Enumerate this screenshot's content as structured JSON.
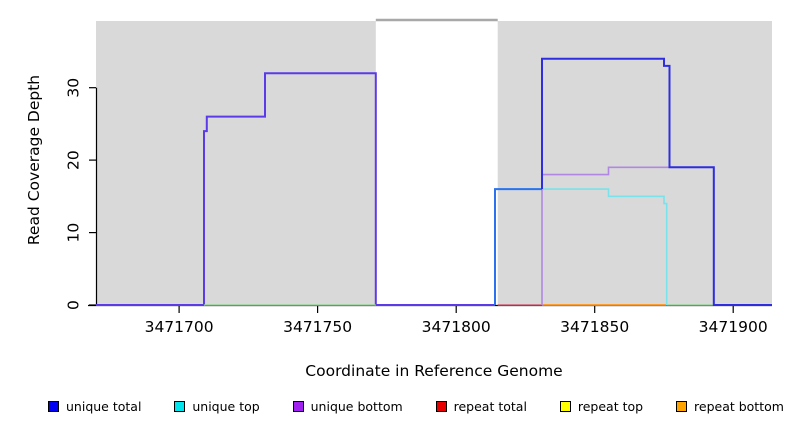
{
  "chart_data": {
    "type": "line",
    "subtype": "step-coverage",
    "title": "",
    "xlabel": "Coordinate in Reference Genome",
    "ylabel": "Read Coverage Depth",
    "xlim": [
      3471670,
      3471914
    ],
    "ylim": [
      0,
      39.2
    ],
    "x_ticks": [
      3471700,
      3471750,
      3471800,
      3471850,
      3471900
    ],
    "y_ticks": [
      0,
      10,
      20,
      30
    ],
    "grid": false,
    "legend_position": "bottom",
    "background_color": "#ffffff",
    "highlight_regions": [
      {
        "x0": 3471670,
        "x1": 3471771,
        "color": "#d9d9d9"
      },
      {
        "x0": 3471815,
        "x1": 3471914,
        "color": "#d9d9d9"
      }
    ],
    "gap_region": {
      "x0": 3471771,
      "x1": 3471815,
      "top_line_color": "#a8a8a8"
    },
    "series": [
      {
        "name": "unique total",
        "color": "#0000f5",
        "steps": [
          [
            3471670,
            0
          ],
          [
            3471709,
            24
          ],
          [
            3471710,
            26
          ],
          [
            3471731,
            32
          ],
          [
            3471771,
            0
          ],
          [
            3471814,
            16
          ],
          [
            3471831,
            34
          ],
          [
            3471875,
            33
          ],
          [
            3471876,
            19
          ],
          [
            3471893,
            0
          ],
          [
            3471914,
            0
          ]
        ]
      },
      {
        "name": "unique top",
        "color": "#00e5ee",
        "steps": [
          [
            3471670,
            0
          ],
          [
            3471814,
            16
          ],
          [
            3471855,
            15
          ],
          [
            3471875,
            14
          ],
          [
            3471876,
            0
          ],
          [
            3471914,
            0
          ]
        ]
      },
      {
        "name": "unique bottom",
        "color": "#a020f0",
        "steps": [
          [
            3471670,
            0
          ],
          [
            3471709,
            24
          ],
          [
            3471710,
            26
          ],
          [
            3471731,
            32
          ],
          [
            3471771,
            0
          ],
          [
            3471831,
            18
          ],
          [
            3471855,
            19
          ],
          [
            3471893,
            0
          ],
          [
            3471914,
            0
          ]
        ]
      },
      {
        "name": "repeat total",
        "color": "#e60000",
        "steps": [
          [
            3471670,
            0
          ],
          [
            3471914,
            0
          ]
        ]
      },
      {
        "name": "repeat top",
        "color": "#ffff00",
        "steps": [
          [
            3471670,
            0
          ],
          [
            3471914,
            0
          ]
        ]
      },
      {
        "name": "repeat bottom",
        "color": "#ffa300",
        "steps": [
          [
            3471670,
            0
          ],
          [
            3471914,
            0
          ]
        ]
      }
    ],
    "visible_segments": [
      {
        "desc": "unique-total-plus-bottom-left-blend",
        "color": "#5b3be8",
        "width": 2,
        "points": [
          [
            3471670,
            0
          ],
          [
            3471709,
            0
          ],
          [
            3471709,
            24
          ],
          [
            3471710,
            24
          ],
          [
            3471710,
            26
          ],
          [
            3471731,
            26
          ],
          [
            3471731,
            32
          ],
          [
            3471771,
            32
          ],
          [
            3471771,
            0
          ],
          [
            3471814,
            0
          ]
        ]
      },
      {
        "desc": "baseline-green-blend-left",
        "color": "#8cc98c",
        "width": 1.5,
        "points": [
          [
            3471709,
            0
          ],
          [
            3471771,
            0
          ]
        ]
      },
      {
        "desc": "baseline-green-blend-right",
        "color": "#8cc98c",
        "width": 1.5,
        "points": [
          [
            3471876,
            0
          ],
          [
            3471893,
            0
          ]
        ]
      },
      {
        "desc": "baseline-repeat-total-red",
        "color": "#c4556e",
        "width": 1.5,
        "points": [
          [
            3471815,
            0
          ],
          [
            3471831,
            0
          ]
        ]
      },
      {
        "desc": "baseline-repeat-bottom-orange",
        "color": "#ff9012",
        "width": 1.8,
        "points": [
          [
            3471831,
            0
          ],
          [
            3471876,
            0
          ]
        ]
      },
      {
        "desc": "unique-bottom-right",
        "color": "#b287e3",
        "width": 1.6,
        "points": [
          [
            3471831,
            0
          ],
          [
            3471831,
            18
          ],
          [
            3471855,
            18
          ],
          [
            3471855,
            19
          ],
          [
            3471893,
            19
          ],
          [
            3471893,
            0
          ]
        ]
      },
      {
        "desc": "unique-top-right",
        "color": "#79e2ea",
        "width": 1.6,
        "points": [
          [
            3471814,
            16
          ],
          [
            3471855,
            16
          ],
          [
            3471855,
            15
          ],
          [
            3471875,
            15
          ],
          [
            3471875,
            14
          ],
          [
            3471876,
            14
          ],
          [
            3471876,
            0
          ]
        ]
      },
      {
        "desc": "unique-total-plus-top-blend-rise",
        "color": "#2b72ee",
        "width": 2,
        "points": [
          [
            3471814,
            0
          ],
          [
            3471814,
            16
          ],
          [
            3471831,
            16
          ]
        ]
      },
      {
        "desc": "unique-total-right",
        "color": "#2e2ee0",
        "width": 2,
        "points": [
          [
            3471831,
            16
          ],
          [
            3471831,
            34
          ],
          [
            3471875,
            34
          ],
          [
            3471875,
            33
          ],
          [
            3471877,
            33
          ],
          [
            3471877,
            19
          ],
          [
            3471893,
            19
          ],
          [
            3471893,
            0
          ],
          [
            3471914,
            0
          ]
        ]
      }
    ]
  },
  "legend": {
    "items": [
      {
        "label": "unique total",
        "color": "#0000f5"
      },
      {
        "label": "unique top",
        "color": "#00e5ee"
      },
      {
        "label": "unique bottom",
        "color": "#a020f0"
      },
      {
        "label": "repeat total",
        "color": "#e60000"
      },
      {
        "label": "repeat top",
        "color": "#ffff00"
      },
      {
        "label": "repeat bottom",
        "color": "#ffa300"
      }
    ]
  }
}
